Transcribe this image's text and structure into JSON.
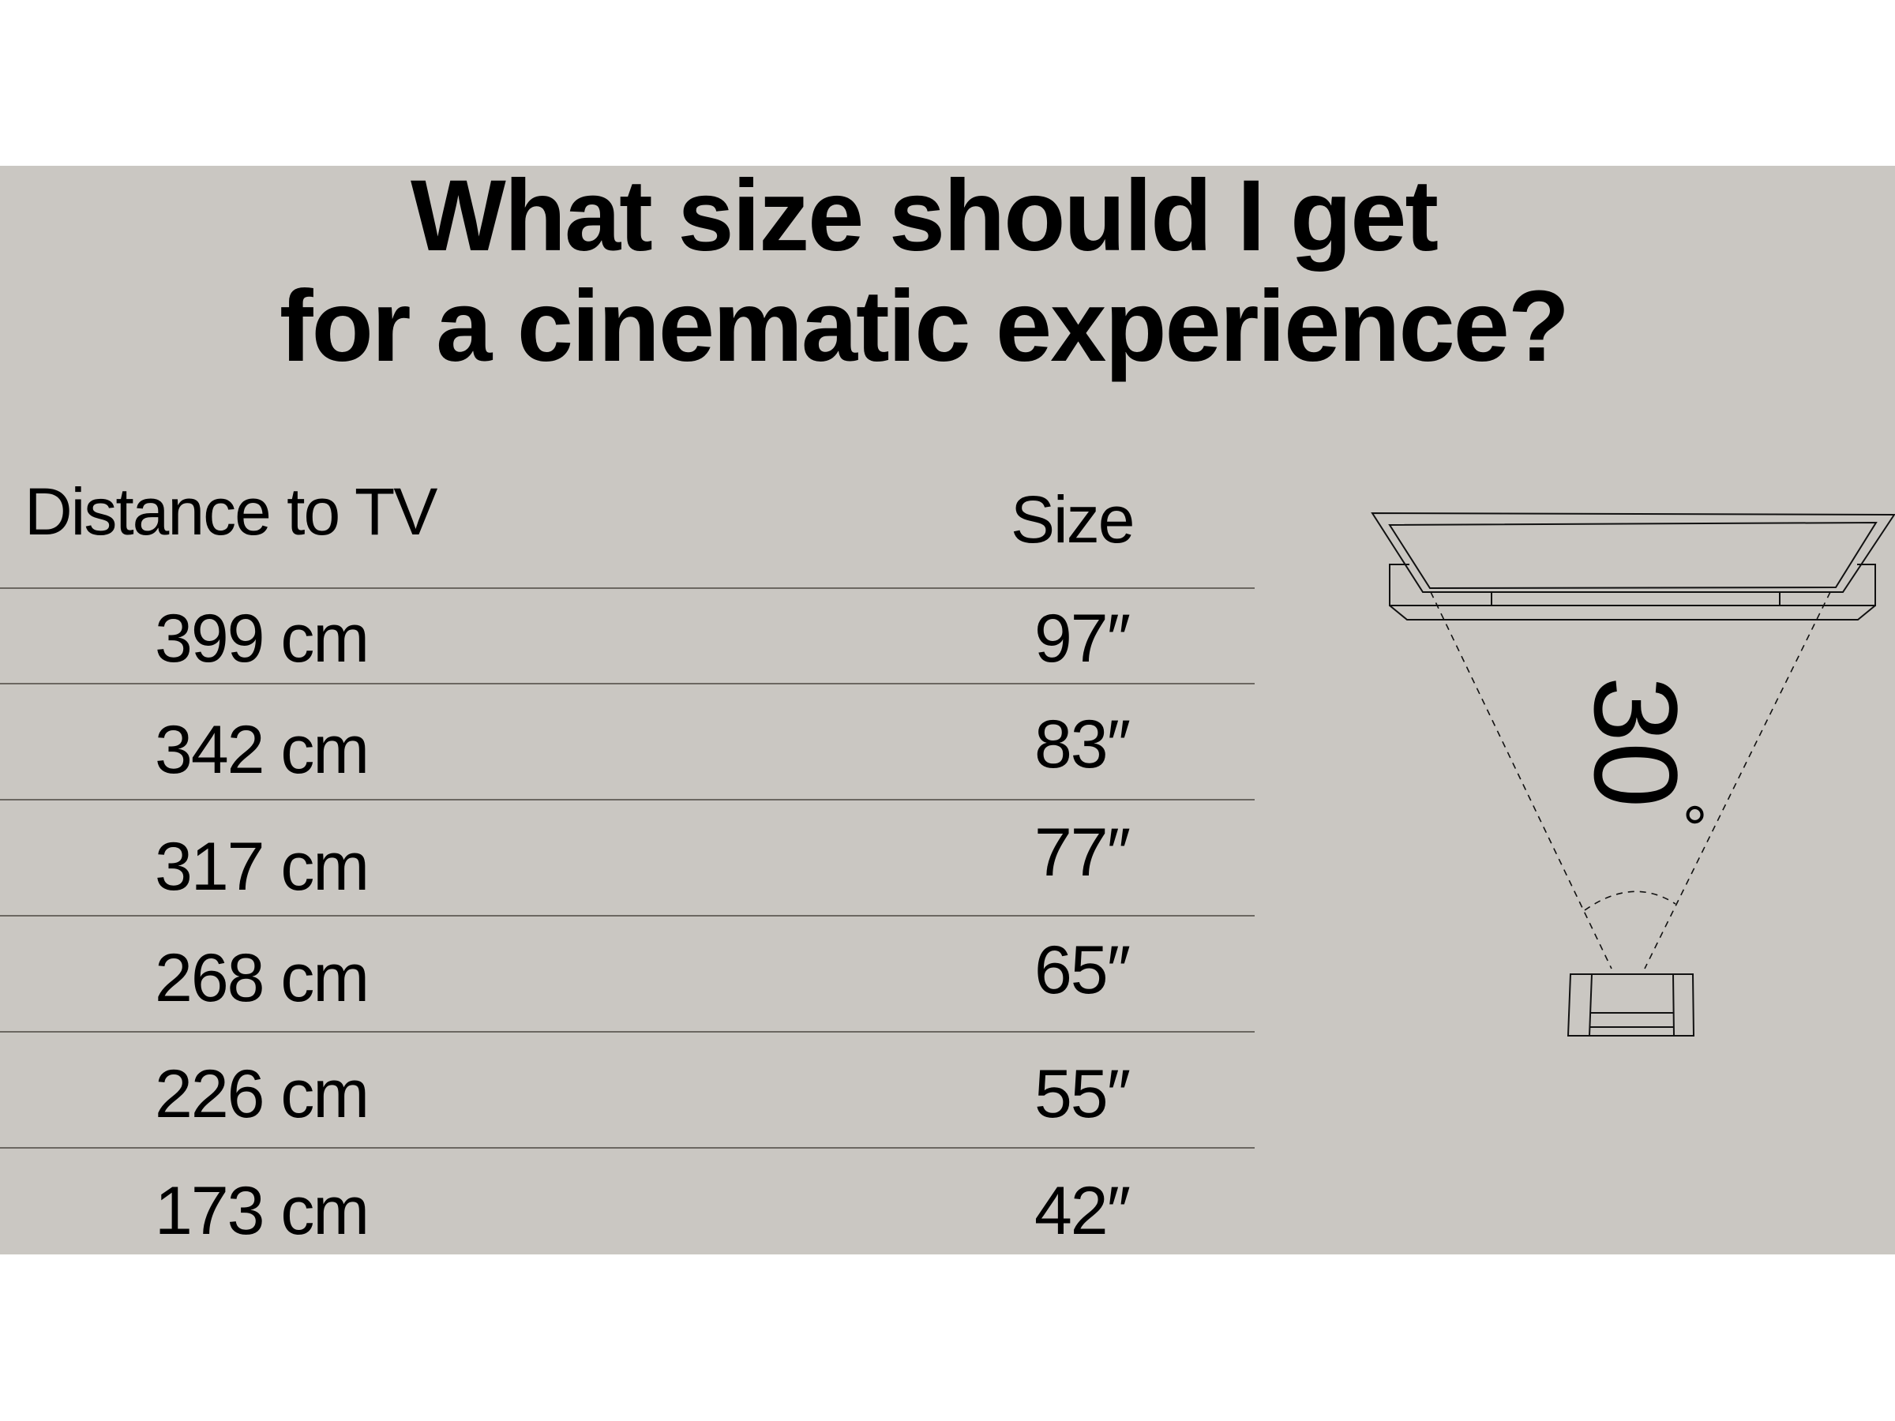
{
  "title": {
    "line1": "What size should I get",
    "line2": "for a cinematic experience?"
  },
  "table": {
    "headers": {
      "distance": "Distance to TV",
      "size": "Size"
    },
    "rows": [
      {
        "distance": "399 cm",
        "size": "97″"
      },
      {
        "distance": "342 cm",
        "size": "83″"
      },
      {
        "distance": "317 cm",
        "size": "77″"
      },
      {
        "distance": "268 cm",
        "size": "65″"
      },
      {
        "distance": "226 cm",
        "size": "55″"
      },
      {
        "distance": "173 cm",
        "size": "42″"
      }
    ]
  },
  "diagram": {
    "angle_label": "30",
    "degree_symbol": "°"
  },
  "colors": {
    "background": "#cac7c2",
    "text": "#000000",
    "rule": "#6b6761"
  }
}
